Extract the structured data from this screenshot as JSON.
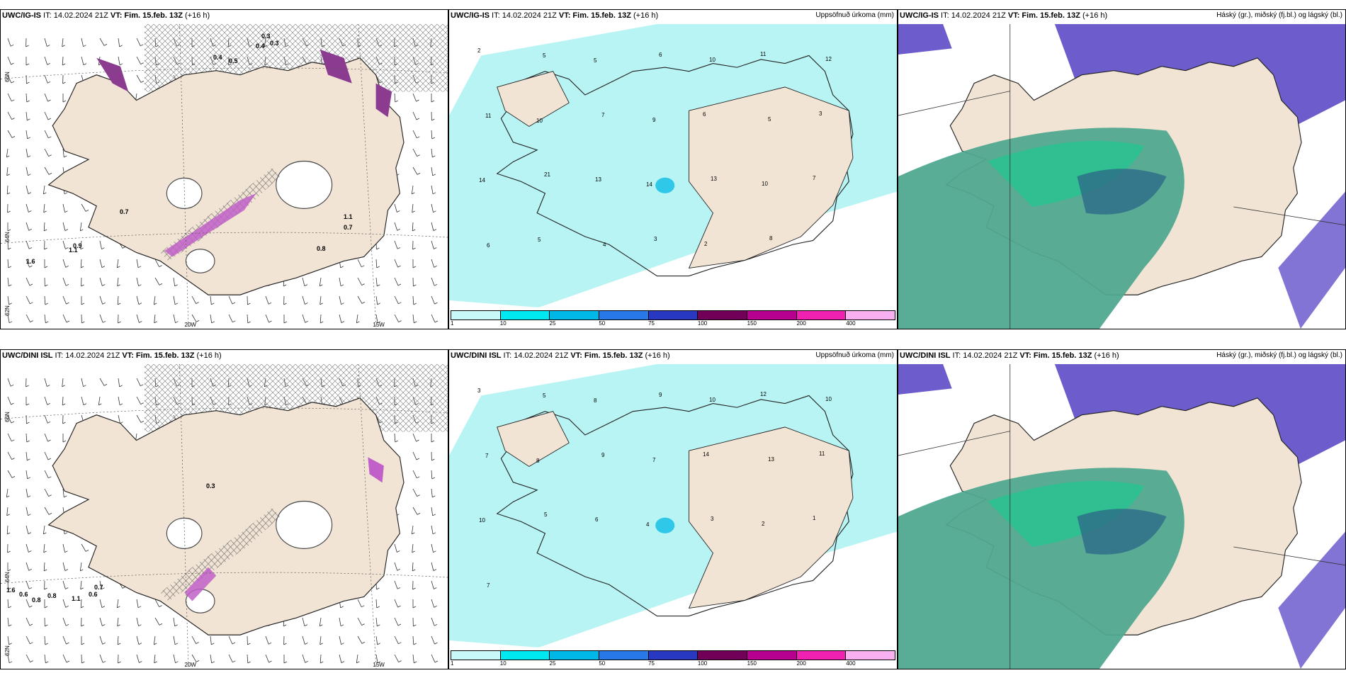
{
  "panels": [
    {
      "title_prefix": "UWC/IG-IS",
      "it": " IT: 14.02.2024 21Z ",
      "vt_label": "VT:",
      "vt": " Fim. 15.feb. 13Z",
      "lead": " (+16 h)",
      "right": "",
      "kind": "wind"
    },
    {
      "title_prefix": "UWC/IG-IS",
      "it": " IT: 14.02.2024 21Z ",
      "vt_label": "VT:",
      "vt": " Fim. 15.feb. 13Z",
      "lead": " (+16 h)",
      "right": "Uppsöfnuð úrkoma (mm)",
      "kind": "precip"
    },
    {
      "title_prefix": "UWC/IG-IS",
      "it": " IT: 14.02.2024 21Z ",
      "vt_label": "VT:",
      "vt": " Fim. 15.feb. 13Z",
      "lead": " (+16 h)",
      "right": "Háský (gr.), miðský (fj.bl.) og lágský (bl.)",
      "kind": "cloud"
    },
    {
      "title_prefix": "UWC/DINI ISL",
      "it": " IT: 14.02.2024 21Z ",
      "vt_label": "VT:",
      "vt": " Fim. 15.feb. 13Z",
      "lead": " (+16 h)",
      "right": "",
      "kind": "wind"
    },
    {
      "title_prefix": "UWC/DINI ISL",
      "it": " IT: 14.02.2024 21Z ",
      "vt_label": "VT:",
      "vt": " Fim. 15.feb. 13Z",
      "lead": " (+16 h)",
      "right": "Uppsöfnuð úrkoma (mm)",
      "kind": "precip"
    },
    {
      "title_prefix": "UWC/DINI ISL",
      "it": " IT: 14.02.2024 21Z ",
      "vt_label": "VT:",
      "vt": " Fim. 15.feb. 13Z",
      "lead": " (+16 h)",
      "right": "Háský (gr.), miðský (fj.bl.) og lágský (bl.)",
      "kind": "cloud"
    }
  ],
  "axis_labels": {
    "lon_20": "20W",
    "lon_15": "15W",
    "lat_66": "66N",
    "lat_64": "64N",
    "lat_62": "62N"
  },
  "precip_legend": {
    "ticks": [
      "1",
      "10",
      "25",
      "50",
      "75",
      "100",
      "150",
      "200",
      "400"
    ],
    "colors": [
      "#c8f8f8",
      "#00e8f0",
      "#00b8e8",
      "#2878e8",
      "#2838c0",
      "#700058",
      "#b80090",
      "#f020b0",
      "#f8b0f0"
    ]
  },
  "colors": {
    "land": "#f2e4d4",
    "ice": "#ffffff",
    "sea": "#ffffff",
    "precip_light": "#b8f4f4",
    "cloud_high": "#6c5ccc",
    "cloud_low": "#50a890",
    "cloud_green": "#20c890"
  },
  "wind_numbers_top": [
    "0.3",
    "0.4",
    "0.3",
    "0.5",
    "0.4",
    "0.7",
    "1.1",
    "0.7",
    "0.9",
    "1.1",
    "0.8",
    "1.6"
  ],
  "wind_numbers_bottom": [
    "1.6",
    "0.6",
    "0.8",
    "0.8",
    "1.1",
    "0.7",
    "0.6",
    "0.3"
  ],
  "precip_numbers_top": [
    "2",
    "5",
    "5",
    "6",
    "10",
    "11",
    "12",
    "11",
    "10",
    "7",
    "9",
    "6",
    "5",
    "3",
    "14",
    "21",
    "13",
    "14",
    "13",
    "10",
    "7",
    "6",
    "5",
    "4",
    "3",
    "2",
    "8"
  ],
  "precip_numbers_bottom": [
    "3",
    "5",
    "8",
    "9",
    "10",
    "12",
    "10",
    "7",
    "8",
    "9",
    "7",
    "14",
    "13",
    "11",
    "10",
    "5",
    "6",
    "4",
    "3",
    "2",
    "1",
    "7"
  ]
}
